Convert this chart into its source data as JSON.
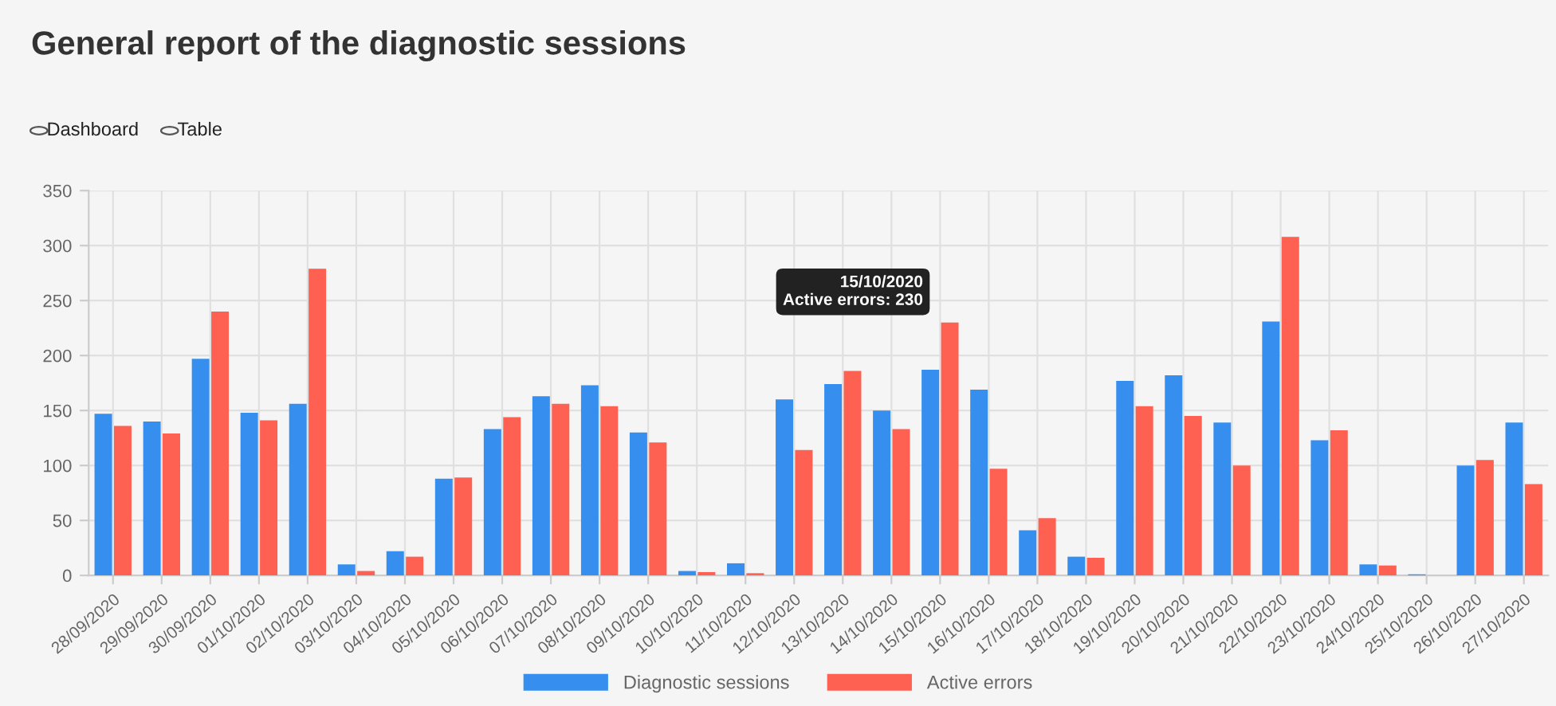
{
  "chart_data": {
    "type": "bar",
    "title": "General report of the diagnostic sessions",
    "annotations": [
      "Dashboard",
      "Table",
      {
        "text": "15/10/2020\nActive errors: 230",
        "x": "15/10/2020",
        "y": 230
      }
    ],
    "categories": [
      "28/09/2020",
      "29/09/2020",
      "30/09/2020",
      "01/10/2020",
      "02/10/2020",
      "03/10/2020",
      "04/10/2020",
      "05/10/2020",
      "06/10/2020",
      "07/10/2020",
      "08/10/2020",
      "09/10/2020",
      "10/10/2020",
      "11/10/2020",
      "12/10/2020",
      "13/10/2020",
      "14/10/2020",
      "15/10/2020",
      "16/10/2020",
      "17/10/2020",
      "18/10/2020",
      "19/10/2020",
      "20/10/2020",
      "21/10/2020",
      "22/10/2020",
      "23/10/2020",
      "24/10/2020",
      "25/10/2020",
      "26/10/2020",
      "27/10/2020"
    ],
    "series": [
      {
        "name": "Diagnostic sessions",
        "color": "#368fef",
        "values": [
          147,
          140,
          197,
          148,
          156,
          10,
          22,
          88,
          133,
          163,
          173,
          130,
          4,
          11,
          160,
          174,
          150,
          187,
          169,
          41,
          17,
          177,
          182,
          139,
          231,
          123,
          10,
          1,
          100,
          139
        ]
      },
      {
        "name": "Active errors",
        "color": "#fe6152",
        "values": [
          136,
          129,
          240,
          141,
          279,
          4,
          17,
          89,
          144,
          156,
          154,
          121,
          3,
          2,
          114,
          186,
          133,
          230,
          97,
          52,
          16,
          154,
          145,
          100,
          308,
          132,
          9,
          0,
          105,
          83
        ]
      }
    ],
    "ylim": [
      0,
      350
    ],
    "yticks": [
      0,
      50,
      100,
      150,
      200,
      250,
      300,
      350
    ],
    "grid": true,
    "legend": "bottom"
  }
}
